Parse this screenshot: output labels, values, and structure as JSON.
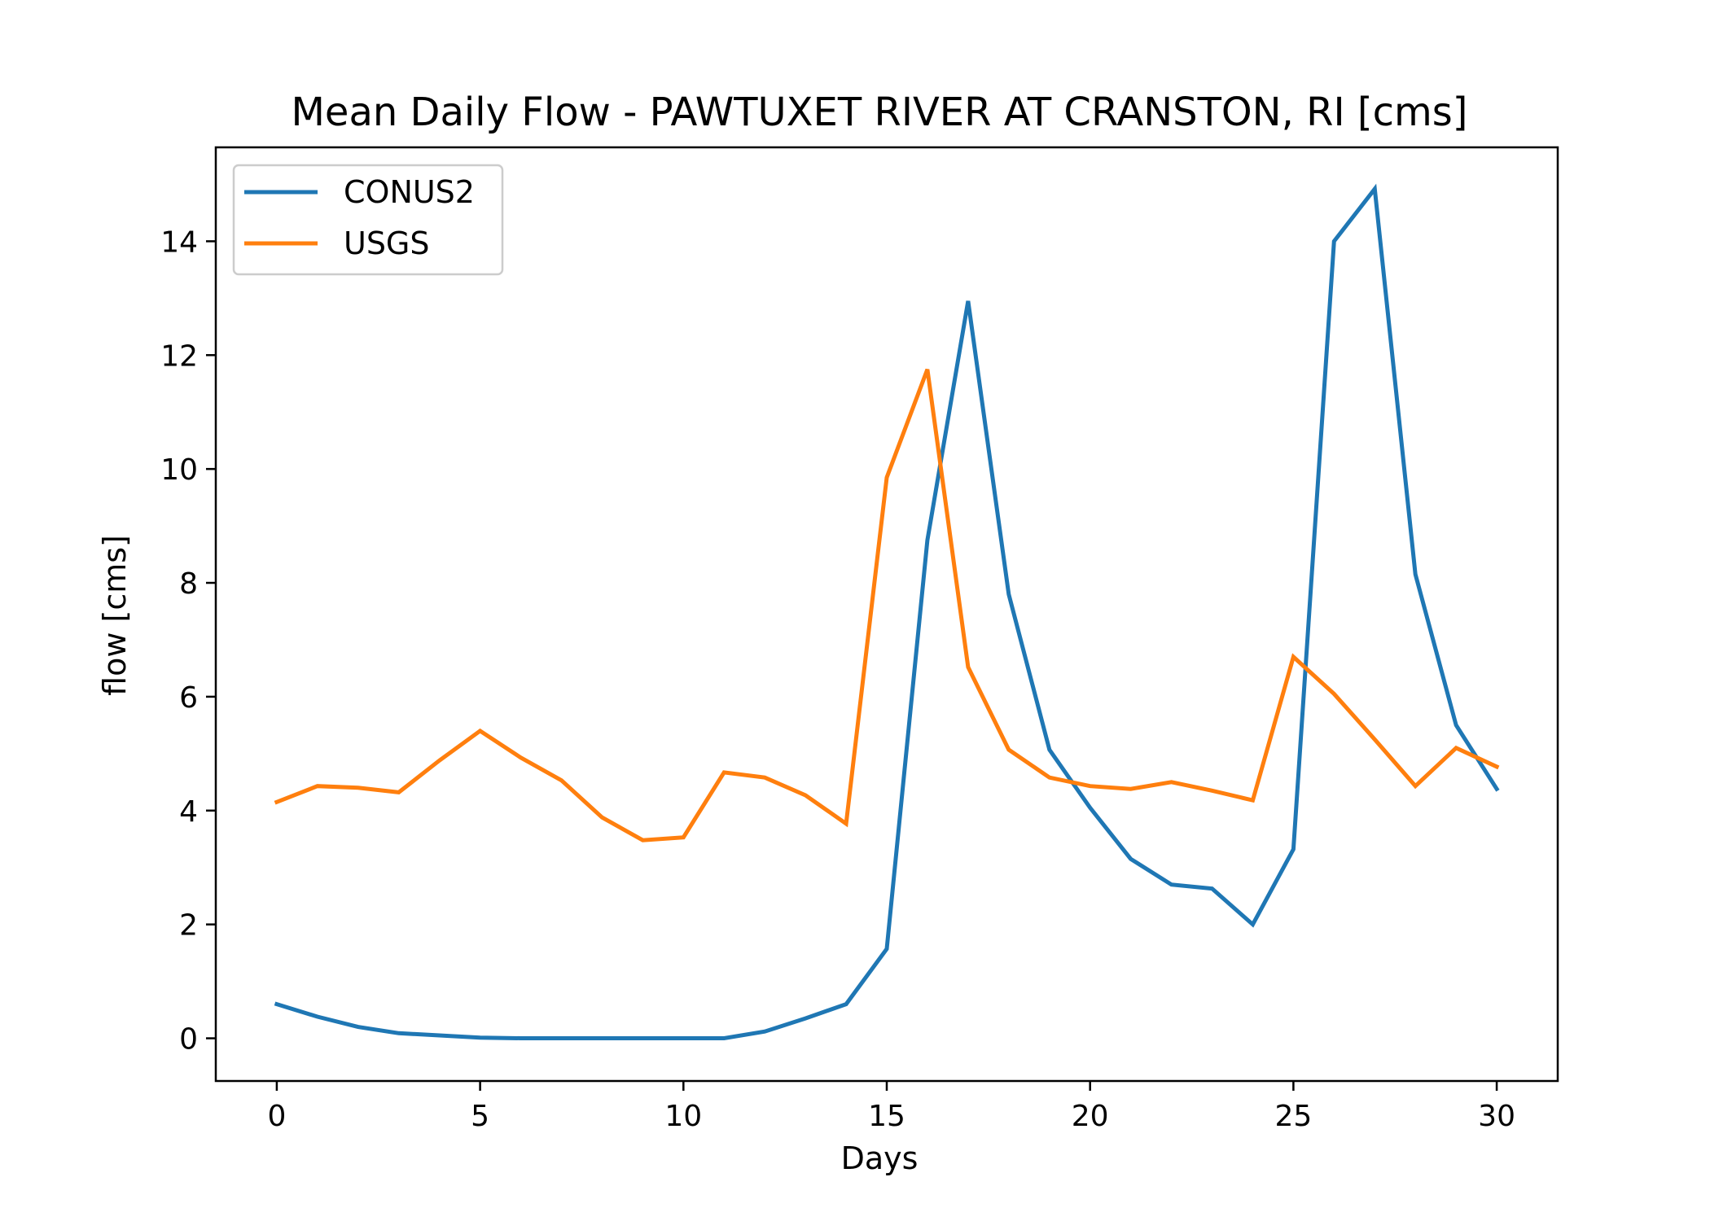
{
  "chart_data": {
    "type": "line",
    "title": "Mean Daily Flow - PAWTUXET RIVER AT CRANSTON, RI [cms]",
    "xlabel": "Days",
    "ylabel": "flow [cms]",
    "xlim": [
      -1.5,
      31.5
    ],
    "ylim": [
      -0.75,
      15.65
    ],
    "xticks": [
      0,
      5,
      10,
      15,
      20,
      25,
      30
    ],
    "yticks": [
      0,
      2,
      4,
      6,
      8,
      10,
      12,
      14
    ],
    "grid": false,
    "legend_position": "top-left",
    "x": [
      0,
      1,
      2,
      3,
      4,
      5,
      6,
      7,
      8,
      9,
      10,
      11,
      12,
      13,
      14,
      15,
      16,
      17,
      18,
      19,
      20,
      21,
      22,
      23,
      24,
      25,
      26,
      27,
      28,
      29,
      30
    ],
    "series": [
      {
        "name": "CONUS2",
        "color": "#1f77b4",
        "values": [
          0.6,
          0.38,
          0.2,
          0.09,
          0.05,
          0.01,
          0,
          0,
          0,
          0,
          0,
          0,
          0.12,
          0.35,
          0.6,
          1.57,
          8.75,
          12.95,
          7.8,
          5.07,
          4.05,
          3.15,
          2.7,
          2.63,
          2.0,
          3.32,
          14.0,
          14.92,
          8.15,
          5.5,
          4.38
        ]
      },
      {
        "name": "USGS",
        "color": "#ff7f0e",
        "values": [
          4.15,
          4.43,
          4.4,
          4.32,
          4.88,
          5.4,
          4.93,
          4.53,
          3.88,
          3.48,
          3.53,
          4.67,
          4.58,
          4.27,
          3.77,
          9.85,
          11.75,
          6.52,
          5.07,
          4.58,
          4.43,
          4.38,
          4.5,
          4.35,
          4.18,
          6.7,
          6.05,
          5.25,
          4.43,
          5.1,
          4.77
        ]
      }
    ]
  }
}
